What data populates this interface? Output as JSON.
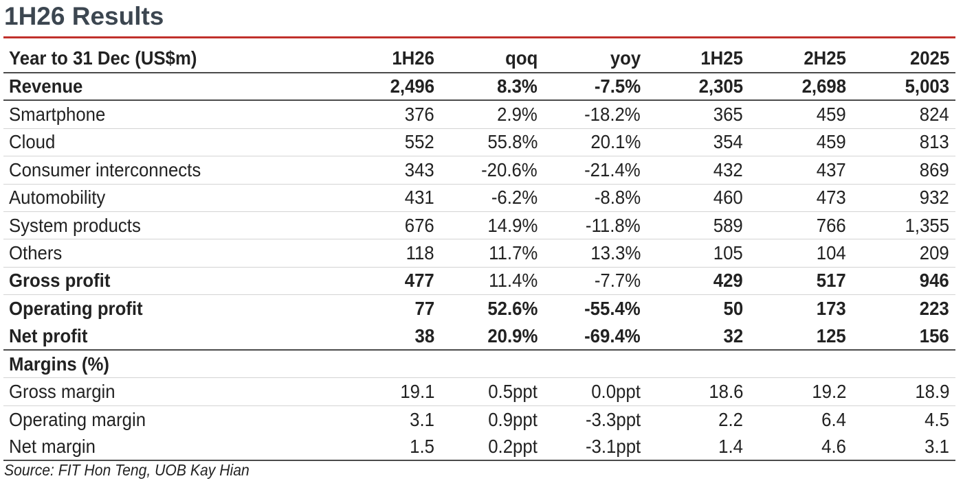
{
  "title": "1H26 Results",
  "accent_color": "#c0302b",
  "columns": {
    "label": "Year to 31 Dec (US$m)",
    "c1": "1H26",
    "c2": "qoq",
    "c3": "yoy",
    "c4": "1H25",
    "c5": "2H25",
    "c6": "2025"
  },
  "rows": [
    {
      "label": "Revenue",
      "c1": "2,496",
      "c2": "8.3%",
      "c3": "-7.5%",
      "c4": "2,305",
      "c5": "2,698",
      "c6": "5,003"
    },
    {
      "label": "Smartphone",
      "c1": "376",
      "c2": "2.9%",
      "c3": "-18.2%",
      "c4": "365",
      "c5": "459",
      "c6": "824"
    },
    {
      "label": "Cloud",
      "c1": "552",
      "c2": "55.8%",
      "c3": "20.1%",
      "c4": "354",
      "c5": "459",
      "c6": "813"
    },
    {
      "label": "Consumer interconnects",
      "c1": "343",
      "c2": "-20.6%",
      "c3": "-21.4%",
      "c4": "432",
      "c5": "437",
      "c6": "869"
    },
    {
      "label": "Automobility",
      "c1": "431",
      "c2": "-6.2%",
      "c3": "-8.8%",
      "c4": "460",
      "c5": "473",
      "c6": "932"
    },
    {
      "label": "System products",
      "c1": "676",
      "c2": "14.9%",
      "c3": "-11.8%",
      "c4": "589",
      "c5": "766",
      "c6": "1,355"
    },
    {
      "label": "Others",
      "c1": "118",
      "c2": "11.7%",
      "c3": "13.3%",
      "c4": "105",
      "c5": "104",
      "c6": "209"
    },
    {
      "label": "Gross profit",
      "c1": "477",
      "c2": "11.4%",
      "c3": "-7.7%",
      "c4": "429",
      "c5": "517",
      "c6": "946"
    },
    {
      "label": "Operating profit",
      "c1": "77",
      "c2": "52.6%",
      "c3": "-55.4%",
      "c4": "50",
      "c5": "173",
      "c6": "223"
    },
    {
      "label": "Net profit",
      "c1": "38",
      "c2": "20.9%",
      "c3": "-69.4%",
      "c4": "32",
      "c5": "125",
      "c6": "156"
    },
    {
      "label": "Margins (%)",
      "c1": "",
      "c2": "",
      "c3": "",
      "c4": "",
      "c5": "",
      "c6": ""
    },
    {
      "label": "Gross margin",
      "c1": "19.1",
      "c2": "0.5ppt",
      "c3": "0.0ppt",
      "c4": "18.6",
      "c5": "19.2",
      "c6": "18.9"
    },
    {
      "label": "Operating margin",
      "c1": "3.1",
      "c2": "0.9ppt",
      "c3": "-3.3ppt",
      "c4": "2.2",
      "c5": "6.4",
      "c6": "4.5"
    },
    {
      "label": "Net margin",
      "c1": "1.5",
      "c2": "0.2ppt",
      "c3": "-3.1ppt",
      "c4": "1.4",
      "c5": "4.6",
      "c6": "3.1"
    }
  ],
  "source": "Source: FIT Hon Teng, UOB Kay Hian"
}
